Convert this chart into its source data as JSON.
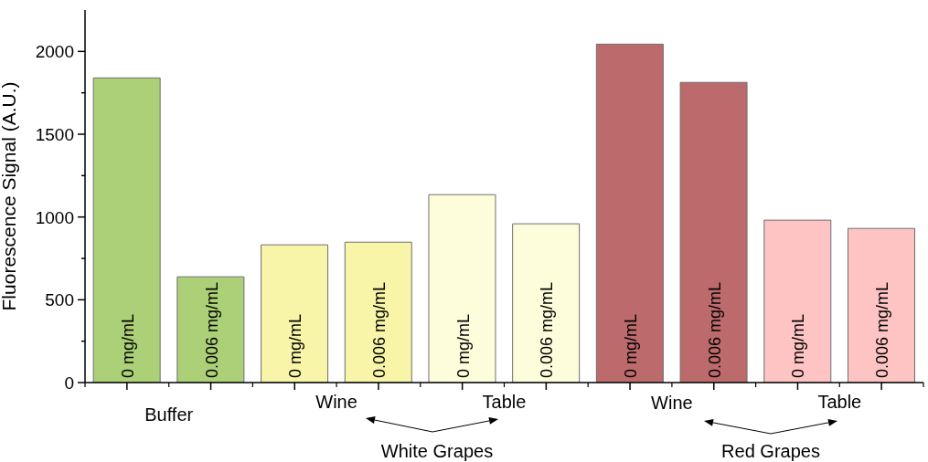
{
  "chart_data": {
    "type": "bar",
    "ylabel": "Fluorescence Signal (A.U.)",
    "categories": [
      "0 mg/mL",
      "0.006 mg/mL",
      "0 mg/mL",
      "0.006 mg/mL",
      "0 mg/mL",
      "0.006 mg/mL",
      "0 mg/mL",
      "0.006 mg/mL",
      "0 mg/mL",
      "0.006 mg/mL"
    ],
    "values": [
      1840,
      639,
      832,
      848,
      1135,
      959,
      2044,
      1813,
      981,
      931
    ],
    "colors": [
      "#acd077",
      "#acd077",
      "#f8f5a8",
      "#f8f5a8",
      "#fefddb",
      "#fefddb",
      "#bc6a6b",
      "#bc6a6b",
      "#fec4c4",
      "#fec4c4"
    ],
    "ylim": [
      0,
      2250
    ],
    "yticks": [
      0,
      {
        "value": 250,
        "label": null
      },
      500,
      {
        "value": 750,
        "label": null
      },
      1000,
      {
        "value": 1250,
        "label": null
      },
      1500,
      {
        "value": 1750,
        "label": null
      },
      2000
    ],
    "annotations": [
      "Buffer",
      "Wine",
      "Table",
      "Wine",
      "Table",
      "White Grapes",
      "Red Grapes"
    ]
  }
}
